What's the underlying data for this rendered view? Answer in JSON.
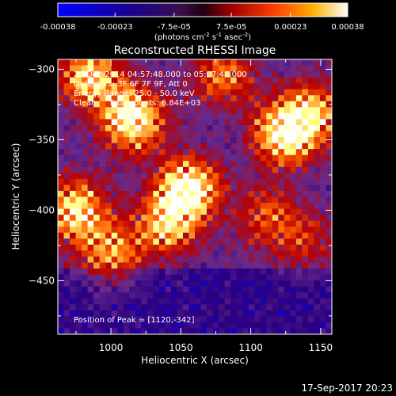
{
  "colorbar": {
    "tick_labels": [
      "-0.00038",
      "-0.00023",
      "-7.5e-05",
      "7.5e-05",
      "0.00023",
      "0.00038"
    ],
    "tick_values": [
      -0.00038,
      -0.00023,
      -7.5e-05,
      7.5e-05,
      0.00023,
      0.00038
    ],
    "range": [
      -0.00038,
      0.00038
    ],
    "units_main": "(photons cm",
    "units_sup1": "-2",
    "units_mid1": " s",
    "units_sup2": "-1",
    "units_mid2": " asec",
    "units_sup3": "-2",
    "units_end": ")"
  },
  "chart_data": {
    "type": "heatmap",
    "title": "Reconstructed RHESSI Image",
    "xlabel": "Heliocentric X (arcsec)",
    "ylabel": "Heliocentric Y (arcsec)",
    "xlim": [
      962,
      1158
    ],
    "ylim": [
      -488,
      -293
    ],
    "x_ticks": [
      1000,
      1050,
      1100,
      1150
    ],
    "x_tick_labels": [
      "1000",
      "1050",
      "1100",
      "1150"
    ],
    "y_ticks": [
      -300,
      -350,
      -400,
      -450
    ],
    "y_tick_labels": [
      "−300",
      "−350",
      "−400",
      "−450"
    ],
    "annotations": [
      "25-Dec-2014 04:57:48.000 to 05:07:48.000",
      "Detectors: 3F 6F 7F 9F, Att 0",
      "Energy Range: 25.0 - 50.0 keV",
      "Clean     Total counts: 6.84E+03"
    ],
    "peak_label": "Position of Peak = [1120,-342]",
    "peak": [
      1120,
      -342
    ],
    "colormap": [
      "#0000ff",
      "#2a0080",
      "#6a2a8a",
      "#b80000",
      "#ff6000",
      "#ffff80",
      "#ffffff"
    ],
    "clusters": [
      {
        "x": 1015,
        "y": -335,
        "amp": 1.0
      },
      {
        "x": 985,
        "y": -305,
        "amp": 0.8
      },
      {
        "x": 975,
        "y": -400,
        "amp": 0.85
      },
      {
        "x": 1000,
        "y": -430,
        "amp": 0.6
      },
      {
        "x": 1055,
        "y": -385,
        "amp": 1.0
      },
      {
        "x": 1040,
        "y": -410,
        "amp": 0.7
      },
      {
        "x": 1125,
        "y": -345,
        "amp": 1.0
      },
      {
        "x": 1145,
        "y": -330,
        "amp": 0.6
      },
      {
        "x": 1080,
        "y": -305,
        "amp": 0.55
      },
      {
        "x": 1110,
        "y": -405,
        "amp": 0.45
      },
      {
        "x": 1140,
        "y": -420,
        "amp": 0.35
      }
    ]
  },
  "footer": {
    "date": "17-Sep-2017 20:23"
  }
}
